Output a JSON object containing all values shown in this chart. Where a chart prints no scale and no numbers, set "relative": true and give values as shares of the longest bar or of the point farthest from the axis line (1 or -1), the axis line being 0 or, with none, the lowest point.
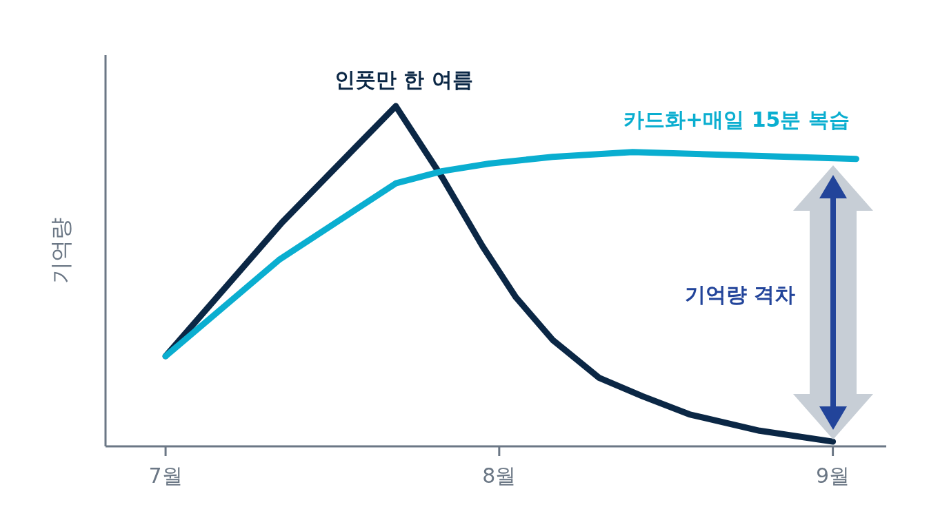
{
  "chart_data": {
    "type": "line",
    "relative": true,
    "ylabel": "기억량",
    "xlim": [
      6.82,
      9.16
    ],
    "xticks": [
      {
        "value": 7,
        "label": "7월"
      },
      {
        "value": 8,
        "label": "8월"
      },
      {
        "value": 9,
        "label": "9월"
      }
    ],
    "grid": false,
    "legend": false,
    "marker": "none",
    "line_style": "solid",
    "annotations": [
      "기억량 격차"
    ],
    "series": [
      {
        "name": "인풋만 한 여름",
        "color": "#0b2745",
        "x": [
          7,
          7.35,
          7.69,
          7.83,
          7.95,
          8.05,
          8.16,
          8.3,
          8.43,
          8.57,
          8.78,
          9
        ],
        "values": [
          0.265,
          0.659,
          1,
          0.789,
          0.588,
          0.438,
          0.313,
          0.201,
          0.147,
          0.094,
          0.046,
          0.014
        ]
      },
      {
        "name": "카드화+매일 15분 복습",
        "color": "#0aaed0",
        "x": [
          7,
          7.34,
          7.69,
          7.83,
          7.97,
          8.16,
          8.4,
          8.67,
          9.07
        ],
        "values": [
          0.265,
          0.548,
          0.773,
          0.809,
          0.831,
          0.851,
          0.865,
          0.857,
          0.845
        ]
      }
    ]
  }
}
